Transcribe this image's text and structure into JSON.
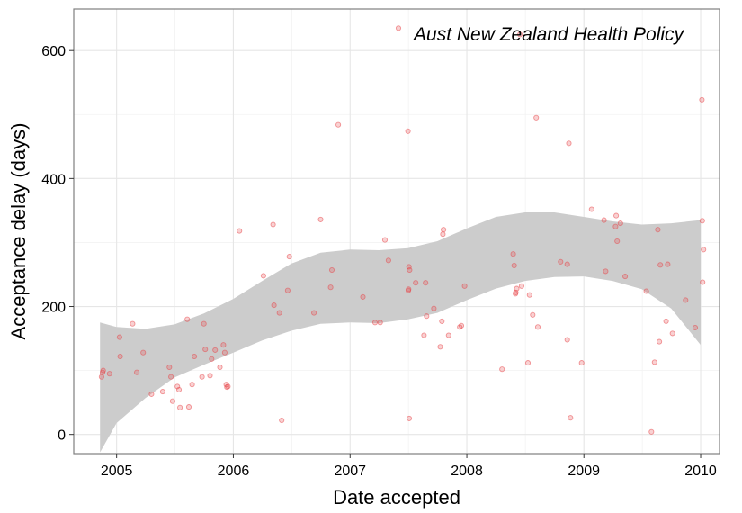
{
  "chart_data": {
    "type": "scatter",
    "title": "",
    "annotation": "Aust New Zealand Health Policy",
    "xlabel": "Date accepted",
    "ylabel": "Acceptance delay (days)",
    "x_ticks": [
      "2005",
      "2006",
      "2007",
      "2008",
      "2009",
      "2010"
    ],
    "y_ticks": [
      0,
      200,
      400,
      600
    ],
    "xlim": [
      "2004-08-20",
      "2010-03-01"
    ],
    "ylim": [
      -30,
      665
    ],
    "grid": true,
    "point_color": "#e8474a",
    "band_color": "#cccccc",
    "points": [
      [
        "2004-11-15",
        90
      ],
      [
        "2004-11-18",
        97
      ],
      [
        "2004-11-20",
        100
      ],
      [
        "2004-12-10",
        95
      ],
      [
        "2005-01-10",
        152
      ],
      [
        "2005-01-12",
        122
      ],
      [
        "2005-02-20",
        173
      ],
      [
        "2005-03-05",
        97
      ],
      [
        "2005-03-25",
        128
      ],
      [
        "2005-04-20",
        63
      ],
      [
        "2005-05-25",
        67
      ],
      [
        "2005-06-15",
        105
      ],
      [
        "2005-06-20",
        90
      ],
      [
        "2005-06-25",
        52
      ],
      [
        "2005-07-10",
        75
      ],
      [
        "2005-07-15",
        70
      ],
      [
        "2005-07-18",
        42
      ],
      [
        "2005-08-10",
        180
      ],
      [
        "2005-08-15",
        43
      ],
      [
        "2005-08-25",
        78
      ],
      [
        "2005-09-01",
        122
      ],
      [
        "2005-09-25",
        90
      ],
      [
        "2005-10-01",
        173
      ],
      [
        "2005-10-05",
        133
      ],
      [
        "2005-10-20",
        92
      ],
      [
        "2005-10-25",
        118
      ],
      [
        "2005-11-05",
        132
      ],
      [
        "2005-11-20",
        105
      ],
      [
        "2005-12-01",
        140
      ],
      [
        "2005-12-05",
        128
      ],
      [
        "2005-12-10",
        78
      ],
      [
        "2005-12-12",
        74
      ],
      [
        "2005-12-15",
        75
      ],
      [
        "2006-01-20",
        318
      ],
      [
        "2006-04-05",
        248
      ],
      [
        "2006-05-05",
        328
      ],
      [
        "2006-05-08",
        202
      ],
      [
        "2006-05-25",
        190
      ],
      [
        "2006-06-01",
        22
      ],
      [
        "2006-06-20",
        225
      ],
      [
        "2006-06-25",
        278
      ],
      [
        "2006-09-10",
        190
      ],
      [
        "2006-10-01",
        336
      ],
      [
        "2006-11-01",
        230
      ],
      [
        "2006-11-05",
        257
      ],
      [
        "2006-11-25",
        484
      ],
      [
        "2007-02-10",
        215
      ],
      [
        "2007-03-20",
        175
      ],
      [
        "2007-04-05",
        175
      ],
      [
        "2007-04-20",
        304
      ],
      [
        "2007-05-01",
        272
      ],
      [
        "2007-06-01",
        635
      ],
      [
        "2007-07-01",
        474
      ],
      [
        "2007-07-02",
        225
      ],
      [
        "2007-07-03",
        227
      ],
      [
        "2007-07-04",
        262
      ],
      [
        "2007-07-06",
        257
      ],
      [
        "2007-07-05",
        25
      ],
      [
        "2007-07-25",
        237
      ],
      [
        "2007-08-20",
        155
      ],
      [
        "2007-08-25",
        237
      ],
      [
        "2007-08-28",
        185
      ],
      [
        "2007-09-20",
        197
      ],
      [
        "2007-10-10",
        137
      ],
      [
        "2007-10-15",
        177
      ],
      [
        "2007-10-18",
        313
      ],
      [
        "2007-10-20",
        320
      ],
      [
        "2007-11-05",
        155
      ],
      [
        "2007-12-10",
        168
      ],
      [
        "2007-12-15",
        170
      ],
      [
        "2007-12-25",
        232
      ],
      [
        "2008-04-20",
        102
      ],
      [
        "2008-05-25",
        282
      ],
      [
        "2008-05-28",
        264
      ],
      [
        "2008-06-01",
        220
      ],
      [
        "2008-06-02",
        222
      ],
      [
        "2008-06-05",
        228
      ],
      [
        "2008-06-15",
        625
      ],
      [
        "2008-06-20",
        232
      ],
      [
        "2008-07-10",
        112
      ],
      [
        "2008-07-15",
        218
      ],
      [
        "2008-07-25",
        187
      ],
      [
        "2008-08-05",
        495
      ],
      [
        "2008-08-10",
        168
      ],
      [
        "2008-10-20",
        270
      ],
      [
        "2008-11-10",
        266
      ],
      [
        "2008-11-10",
        148
      ],
      [
        "2008-11-15",
        455
      ],
      [
        "2008-11-20",
        26
      ],
      [
        "2008-12-25",
        112
      ],
      [
        "2009-01-25",
        352
      ],
      [
        "2009-03-05",
        335
      ],
      [
        "2009-03-10",
        255
      ],
      [
        "2009-04-10",
        325
      ],
      [
        "2009-04-12",
        342
      ],
      [
        "2009-04-15",
        302
      ],
      [
        "2009-04-25",
        330
      ],
      [
        "2009-05-10",
        247
      ],
      [
        "2009-07-15",
        224
      ],
      [
        "2009-07-31",
        4
      ],
      [
        "2009-08-10",
        113
      ],
      [
        "2009-08-20",
        320
      ],
      [
        "2009-08-25",
        145
      ],
      [
        "2009-08-28",
        265
      ],
      [
        "2009-09-15",
        177
      ],
      [
        "2009-09-20",
        266
      ],
      [
        "2009-10-05",
        158
      ],
      [
        "2009-11-15",
        210
      ],
      [
        "2009-12-15",
        167
      ],
      [
        "2010-01-05",
        523
      ],
      [
        "2010-01-06",
        334
      ],
      [
        "2010-01-07",
        238
      ],
      [
        "2010-01-10",
        289
      ]
    ],
    "smooth_band": {
      "x": [
        "2004-11-10",
        "2005-01-01",
        "2005-04-01",
        "2005-07-01",
        "2005-10-01",
        "2006-01-01",
        "2006-04-01",
        "2006-07-01",
        "2006-10-01",
        "2007-01-01",
        "2007-04-01",
        "2007-07-01",
        "2007-10-01",
        "2008-01-01",
        "2008-04-01",
        "2008-07-01",
        "2008-10-01",
        "2009-01-01",
        "2009-04-01",
        "2009-07-01",
        "2009-10-01",
        "2010-01-01"
      ],
      "upper": [
        175,
        168,
        165,
        172,
        189,
        212,
        240,
        267,
        284,
        289,
        288,
        291,
        302,
        322,
        340,
        347,
        347,
        340,
        333,
        328,
        330,
        335
      ],
      "lower": [
        -28,
        18,
        57,
        89,
        109,
        128,
        147,
        162,
        173,
        175,
        174,
        180,
        190,
        210,
        228,
        240,
        246,
        247,
        240,
        227,
        197,
        140
      ]
    }
  }
}
